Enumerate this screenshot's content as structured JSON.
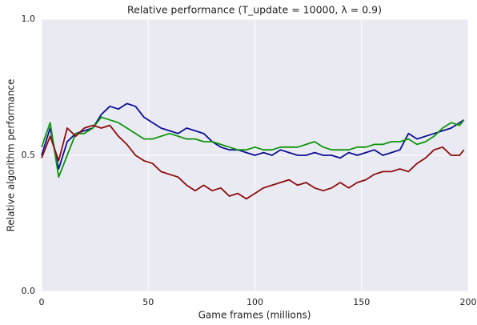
{
  "chart_data": {
    "type": "line",
    "title": "Relative performance (T_update = 10000, λ = 0.9)",
    "x_label": "Game frames (millions)",
    "y_label": "Relative algorithm performance",
    "x": [
      0,
      4,
      8,
      12,
      16,
      20,
      24,
      28,
      32,
      36,
      40,
      44,
      48,
      52,
      56,
      60,
      64,
      68,
      72,
      76,
      80,
      84,
      88,
      92,
      96,
      100,
      104,
      108,
      112,
      116,
      120,
      124,
      128,
      132,
      136,
      140,
      144,
      148,
      152,
      156,
      160,
      164,
      168,
      172,
      176,
      180,
      184,
      188,
      192,
      196,
      198
    ],
    "series": [
      {
        "color": "#0d0d96",
        "values": [
          0.5,
          0.6,
          0.45,
          0.55,
          0.58,
          0.59,
          0.6,
          0.65,
          0.68,
          0.67,
          0.69,
          0.68,
          0.64,
          0.62,
          0.6,
          0.59,
          0.58,
          0.6,
          0.59,
          0.58,
          0.55,
          0.53,
          0.52,
          0.52,
          0.51,
          0.5,
          0.51,
          0.5,
          0.52,
          0.51,
          0.5,
          0.5,
          0.51,
          0.5,
          0.5,
          0.49,
          0.51,
          0.5,
          0.51,
          0.52,
          0.5,
          0.51,
          0.52,
          0.58,
          0.56,
          0.57,
          0.58,
          0.59,
          0.6,
          0.62,
          0.63
        ]
      },
      {
        "color": "#0c960c",
        "values": [
          0.53,
          0.62,
          0.42,
          0.5,
          0.58,
          0.58,
          0.6,
          0.64,
          0.63,
          0.62,
          0.6,
          0.58,
          0.56,
          0.56,
          0.57,
          0.58,
          0.57,
          0.56,
          0.56,
          0.55,
          0.55,
          0.54,
          0.53,
          0.52,
          0.52,
          0.53,
          0.52,
          0.52,
          0.53,
          0.53,
          0.53,
          0.54,
          0.55,
          0.53,
          0.52,
          0.52,
          0.52,
          0.53,
          0.53,
          0.54,
          0.54,
          0.55,
          0.55,
          0.56,
          0.54,
          0.55,
          0.57,
          0.6,
          0.62,
          0.61,
          0.63
        ]
      },
      {
        "color": "#8c0c0c",
        "values": [
          0.49,
          0.57,
          0.48,
          0.6,
          0.57,
          0.6,
          0.61,
          0.6,
          0.61,
          0.57,
          0.54,
          0.5,
          0.48,
          0.47,
          0.44,
          0.43,
          0.42,
          0.39,
          0.37,
          0.39,
          0.37,
          0.38,
          0.35,
          0.36,
          0.34,
          0.36,
          0.38,
          0.39,
          0.4,
          0.41,
          0.39,
          0.4,
          0.38,
          0.37,
          0.38,
          0.4,
          0.38,
          0.4,
          0.41,
          0.43,
          0.44,
          0.44,
          0.45,
          0.44,
          0.47,
          0.49,
          0.52,
          0.53,
          0.5,
          0.5,
          0.52
        ]
      }
    ],
    "xlim": [
      0,
      200
    ],
    "xticks": [
      0,
      50,
      100,
      150,
      200
    ],
    "ylim": [
      0,
      1
    ],
    "yticks": [
      {
        "value": 0,
        "label": "0.0"
      },
      0.5,
      {
        "value": 1,
        "label": "1.0"
      }
    ],
    "grid": true
  }
}
